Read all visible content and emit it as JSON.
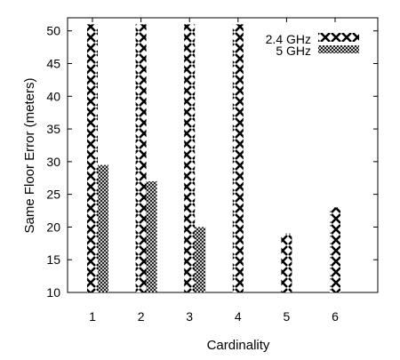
{
  "chart_data": {
    "type": "bar",
    "xlabel": "Cardinality",
    "ylabel": "Same Floor Error (meters)",
    "categories": [
      "1",
      "2",
      "3",
      "4",
      "5",
      "6"
    ],
    "ylim": [
      10,
      52
    ],
    "yticks": [
      "10",
      "15",
      "20",
      "25",
      "30",
      "35",
      "40",
      "45",
      "50"
    ],
    "series": [
      {
        "name": "2.4 GHz",
        "pattern": "big-cross",
        "values": [
          51,
          51,
          51,
          51,
          19,
          23
        ]
      },
      {
        "name": "5 GHz",
        "pattern": "crosshatch",
        "values": [
          29.5,
          27,
          20,
          null,
          null,
          null
        ]
      }
    ],
    "legend_position": "top-right",
    "grid": false,
    "colors": {
      "stroke": "#000000",
      "background": "#ffffff"
    }
  }
}
